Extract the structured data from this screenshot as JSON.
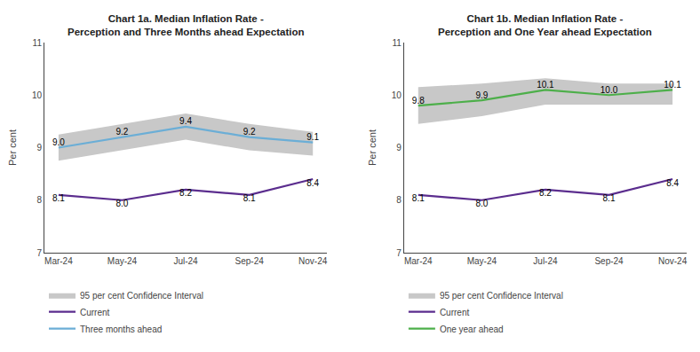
{
  "chart_data": [
    {
      "type": "line",
      "title": "Chart 1a. Median Inflation Rate -\nPerception and Three Months ahead Expectation",
      "categories": [
        "Mar-24",
        "May-24",
        "Jul-24",
        "Sep-24",
        "Nov-24"
      ],
      "ylabel": "Per cent",
      "ylim": [
        7,
        11
      ],
      "yticks": [
        7,
        8,
        9,
        10,
        11
      ],
      "grid": false,
      "legend": "below",
      "series": [
        {
          "name": "95 per cent Confidence Interval",
          "type": "area",
          "color": "#c8c8c8",
          "lower": [
            8.75,
            8.95,
            9.15,
            8.95,
            8.85
          ],
          "upper": [
            9.25,
            9.45,
            9.65,
            9.45,
            9.3
          ]
        },
        {
          "name": "Current",
          "type": "line",
          "color": "#5b2d8e",
          "data_labels": true,
          "values": [
            8.1,
            8.0,
            8.2,
            8.1,
            8.4
          ],
          "value_labels": [
            "8.1",
            "8.0",
            "8.2",
            "8.1",
            "8.4"
          ]
        },
        {
          "name": "Three months ahead",
          "type": "line",
          "color": "#6baed6",
          "data_labels": true,
          "values": [
            9.0,
            9.2,
            9.4,
            9.2,
            9.1
          ],
          "value_labels": [
            "9.0",
            "9.2",
            "9.4",
            "9.2",
            "9.1"
          ]
        }
      ]
    },
    {
      "type": "line",
      "title": "Chart 1b. Median Inflation Rate -\nPerception and One Year ahead Expectation",
      "categories": [
        "Mar-24",
        "May-24",
        "Jul-24",
        "Sep-24",
        "Nov-24"
      ],
      "ylabel": "Per cent",
      "ylim": [
        7,
        11
      ],
      "yticks": [
        7,
        8,
        9,
        10,
        11
      ],
      "grid": false,
      "legend": "below",
      "series": [
        {
          "name": "95 per cent Confidence Interval",
          "type": "area",
          "color": "#c8c8c8",
          "lower": [
            9.45,
            9.6,
            9.82,
            9.82,
            9.82
          ],
          "upper": [
            10.15,
            10.22,
            10.32,
            10.22,
            10.22
          ]
        },
        {
          "name": "Current",
          "type": "line",
          "color": "#5b2d8e",
          "data_labels": true,
          "values": [
            8.1,
            8.0,
            8.2,
            8.1,
            8.4
          ],
          "value_labels": [
            "8.1",
            "8.0",
            "8.2",
            "8.1",
            "8.4"
          ]
        },
        {
          "name": "One year ahead",
          "type": "line",
          "color": "#4daf4a",
          "data_labels": true,
          "values": [
            9.8,
            9.9,
            10.1,
            10.0,
            10.1
          ],
          "value_labels": [
            "9.8",
            "9.9",
            "10.1",
            "10.0",
            "10.1"
          ]
        }
      ]
    }
  ]
}
